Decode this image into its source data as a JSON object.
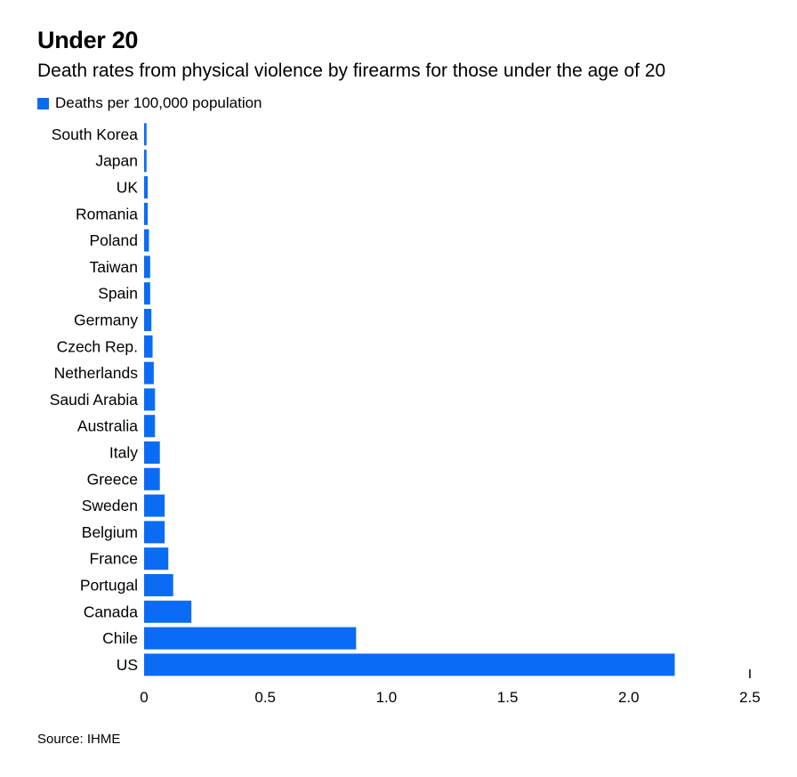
{
  "chart_data": {
    "type": "bar",
    "orientation": "horizontal",
    "title": "Under 20",
    "subtitle": "Death rates from physical violence by firearms for those under the age of 20",
    "legend_position": "top-left",
    "source": "Source: IHME",
    "bar_color": "#0a6cf5",
    "categories": [
      "South Korea",
      "Japan",
      "UK",
      "Romania",
      "Poland",
      "Taiwan",
      "Spain",
      "Germany",
      "Czech Rep.",
      "Netherlands",
      "Saudi Arabia",
      "Australia",
      "Italy",
      "Greece",
      "Sweden",
      "Belgium",
      "France",
      "Portugal",
      "Canada",
      "Chile",
      "US"
    ],
    "series": [
      {
        "name": "Deaths per 100,000 population",
        "values": [
          0.01,
          0.01,
          0.015,
          0.015,
          0.02,
          0.025,
          0.025,
          0.03,
          0.035,
          0.04,
          0.045,
          0.045,
          0.065,
          0.065,
          0.085,
          0.085,
          0.1,
          0.12,
          0.195,
          0.875,
          2.19
        ]
      }
    ],
    "xlim": [
      0,
      2.5
    ],
    "xticks": [
      0,
      0.5,
      1.0,
      1.5,
      2.0,
      2.5
    ],
    "xtick_labels": [
      "0",
      "0.5",
      "1.0",
      "1.5",
      "2.0",
      "2.5"
    ],
    "grid": false
  }
}
